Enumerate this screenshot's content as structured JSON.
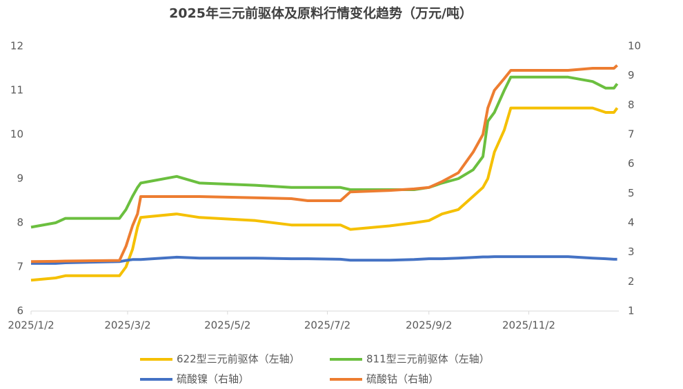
{
  "chart_data": {
    "type": "line",
    "title": "2025年三元前驱体及原料行情变化趋势（万元/吨）",
    "x": [
      "2025/1/2",
      "2025/1/17",
      "2025/1/23",
      "2025/2/25",
      "2025/3/1",
      "2025/3/5",
      "2025/3/8",
      "2025/3/10",
      "2025/4/1",
      "2025/4/15",
      "2025/5/19",
      "2025/6/10",
      "2025/6/20",
      "2025/7/10",
      "2025/7/16",
      "2025/8/9",
      "2025/8/24",
      "2025/9/2",
      "2025/9/10",
      "2025/9/20",
      "2025/9/29",
      "2025/10/5",
      "2025/10/8",
      "2025/10/12",
      "2025/10/18",
      "2025/10/22",
      "2025/11/26",
      "2025/12/11",
      "2025/12/19",
      "2025/12/24",
      "2025/12/26"
    ],
    "xlim": [
      "2025/1/2",
      "2025/12/27"
    ],
    "xticks": [
      "2025/1/2",
      "2025/3/2",
      "2025/5/2",
      "2025/7/2",
      "2025/9/2",
      "2025/11/2"
    ],
    "ylim": [
      6,
      12
    ],
    "yticks": [
      6,
      7,
      8,
      9,
      10,
      11,
      12
    ],
    "y2lim": [
      1,
      10
    ],
    "y2ticks": [
      1,
      2,
      3,
      4,
      5,
      6,
      7,
      8,
      9,
      10
    ],
    "grid": false,
    "legend": "bottom",
    "series": [
      {
        "name": "622型三元前驱体（左轴）",
        "color": "#f5c000",
        "values": [
          6.7,
          6.75,
          6.8,
          6.8,
          7.0,
          7.4,
          7.9,
          8.12,
          8.2,
          8.12,
          8.05,
          7.95,
          7.95,
          7.95,
          7.85,
          7.93,
          8.0,
          8.05,
          8.2,
          8.3,
          8.6,
          8.8,
          9.0,
          9.6,
          10.1,
          10.6,
          10.6,
          10.6,
          10.5,
          10.5,
          10.6
        ]
      },
      {
        "name": "811型三元前驱体（左轴）",
        "color": "#6bbf3f",
        "values": [
          7.9,
          8.0,
          8.1,
          8.1,
          8.3,
          8.6,
          8.8,
          8.9,
          9.05,
          8.9,
          8.85,
          8.8,
          8.8,
          8.8,
          8.75,
          8.75,
          8.75,
          8.8,
          8.9,
          9.0,
          9.2,
          9.5,
          10.3,
          10.5,
          11.0,
          11.3,
          11.3,
          11.2,
          11.05,
          11.05,
          11.15
        ]
      },
      {
        "name": "硫酸镍（右轴）",
        "color": "#4472c4",
        "axis": "y2",
        "values": [
          2.62,
          2.62,
          2.64,
          2.68,
          2.72,
          2.75,
          2.75,
          2.75,
          2.83,
          2.8,
          2.8,
          2.78,
          2.78,
          2.76,
          2.73,
          2.73,
          2.75,
          2.78,
          2.78,
          2.8,
          2.82,
          2.84,
          2.84,
          2.85,
          2.85,
          2.85,
          2.85,
          2.8,
          2.78,
          2.76,
          2.76
        ]
      },
      {
        "name": "硫酸钴（右轴）",
        "color": "#ed7d31",
        "axis": "y2",
        "values": [
          2.68,
          2.69,
          2.7,
          2.72,
          3.2,
          3.9,
          4.3,
          4.89,
          4.89,
          4.89,
          4.85,
          4.82,
          4.75,
          4.75,
          5.05,
          5.1,
          5.15,
          5.2,
          5.4,
          5.7,
          6.4,
          7.0,
          7.9,
          8.5,
          8.9,
          9.18,
          9.18,
          9.25,
          9.25,
          9.25,
          9.35
        ]
      }
    ]
  }
}
